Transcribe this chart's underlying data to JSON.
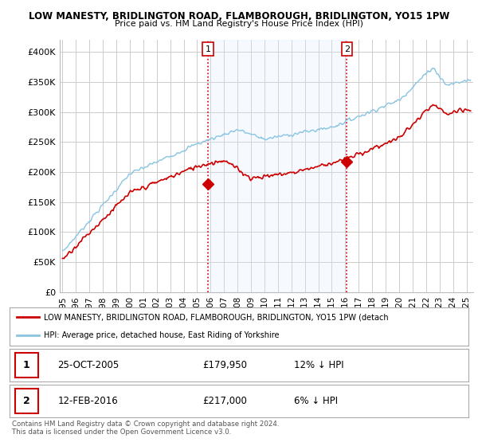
{
  "title_line1": "LOW MANESTY, BRIDLINGTON ROAD, FLAMBOROUGH, BRIDLINGTON, YO15 1PW",
  "title_line2": "Price paid vs. HM Land Registry's House Price Index (HPI)",
  "ylabel_ticks": [
    "£0",
    "£50K",
    "£100K",
    "£150K",
    "£200K",
    "£250K",
    "£300K",
    "£350K",
    "£400K"
  ],
  "ytick_values": [
    0,
    50000,
    100000,
    150000,
    200000,
    250000,
    300000,
    350000,
    400000
  ],
  "ylim": [
    0,
    420000
  ],
  "xlim_start": 1994.8,
  "xlim_end": 2025.5,
  "hpi_color": "#89c4e1",
  "price_color": "#cc0000",
  "sale1_x": 2005.82,
  "sale1_y": 179950,
  "sale1_label": "1",
  "sale2_x": 2016.12,
  "sale2_y": 217000,
  "sale2_label": "2",
  "vline_color": "#cc0000",
  "shade_color": "#ddeeff",
  "background_color": "#ffffff",
  "plot_bg_color": "#ffffff",
  "grid_color": "#cccccc",
  "legend_line1": "LOW MANESTY, BRIDLINGTON ROAD, FLAMBOROUGH, BRIDLINGTON, YO15 1PW (detach",
  "legend_line2": "HPI: Average price, detached house, East Riding of Yorkshire",
  "table_row1": [
    "1",
    "25-OCT-2005",
    "£179,950",
    "12% ↓ HPI"
  ],
  "table_row2": [
    "2",
    "12-FEB-2016",
    "£217,000",
    "6% ↓ HPI"
  ],
  "footnote": "Contains HM Land Registry data © Crown copyright and database right 2024.\nThis data is licensed under the Open Government Licence v3.0.",
  "xtick_years": [
    1995,
    1996,
    1997,
    1998,
    1999,
    2000,
    2001,
    2002,
    2003,
    2004,
    2005,
    2006,
    2007,
    2008,
    2009,
    2010,
    2011,
    2012,
    2013,
    2014,
    2015,
    2016,
    2017,
    2018,
    2019,
    2020,
    2021,
    2022,
    2023,
    2024,
    2025
  ]
}
